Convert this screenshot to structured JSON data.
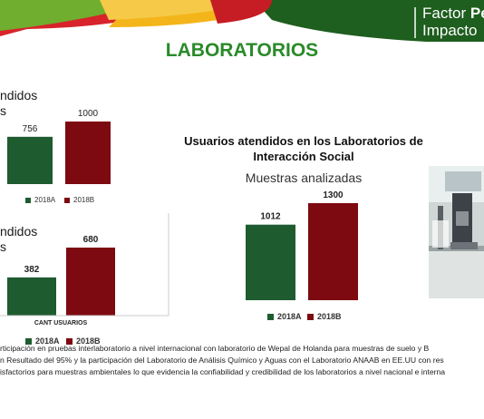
{
  "header": {
    "brand_line1_a": "Factor ",
    "brand_line1_b": "Pe",
    "brand_line2": "Impacto",
    "page_title": "LABORATORIOS"
  },
  "colors": {
    "green": "#1e5c30",
    "red": "#7d0a10",
    "title_green": "#2a8a2a"
  },
  "chart_data": [
    {
      "type": "bar",
      "title": "ndidos",
      "subtitle": "s",
      "categories": [
        "2018A",
        "2018B"
      ],
      "values": [
        756,
        1000
      ],
      "legend": [
        "2018A",
        "2018B"
      ],
      "ylim": [
        0,
        1000
      ]
    },
    {
      "type": "bar",
      "title": "ndidos",
      "subtitle": "s",
      "categories": [
        "2018A",
        "2018B"
      ],
      "values": [
        382,
        680
      ],
      "xlabel": "CANT USUARIOS",
      "legend": [
        "2018A",
        "2018B"
      ],
      "ylim": [
        0,
        680
      ]
    },
    {
      "type": "bar",
      "title": "Usuarios atendidos en los Laboratorios de Interacción Social",
      "title_line1": "Usuarios atendidos en los Laboratorios de",
      "title_line2": "Interacción Social",
      "subtitle": "Muestras analizadas",
      "categories": [
        "2018A",
        "2018B"
      ],
      "values": [
        1012,
        1300
      ],
      "legend": [
        "2018A",
        "2018B"
      ],
      "ylim": [
        0,
        1300
      ]
    }
  ],
  "footer": {
    "line1": "rticipación en pruebas interlaboratorio a nivel internacional con laboratorio de Wepal de Holanda  para muestras de suelo y B",
    "line2": "n Resultado del 95% y la participación del Laboratorio de Análisis Químico y Aguas  con el Laboratorio ANAAB en EE.UU con res",
    "line3": "isfactorios para muestras ambientales lo que evidencia la confiabilidad y credibilidad de los laboratorios a nivel nacional e interna"
  }
}
